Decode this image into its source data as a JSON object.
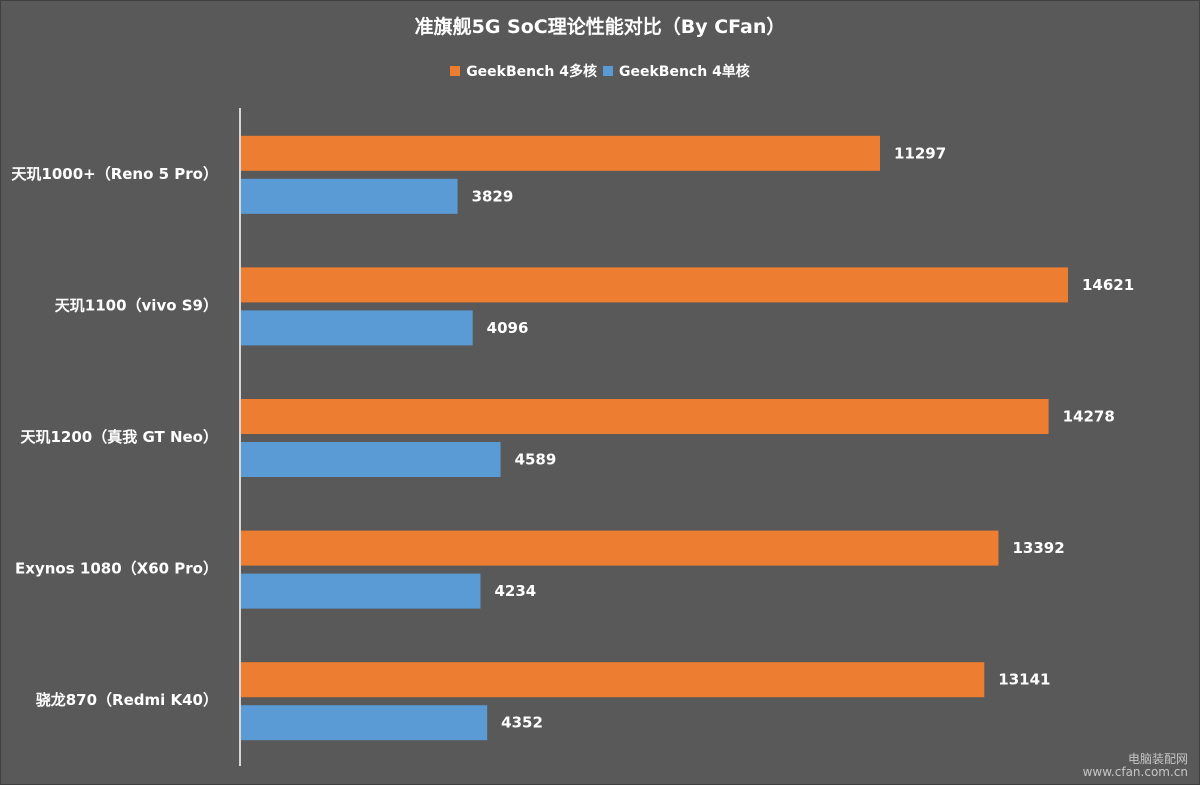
{
  "chart_data": {
    "type": "bar",
    "orientation": "horizontal",
    "title": "准旗舰5G SoC理论性能对比（By CFan）",
    "categories": [
      "天玑1000+（Reno 5 Pro）",
      "天玑1100（vivo S9）",
      "天玑1200（真我 GT Neo）",
      "Exynos 1080（X60 Pro）",
      "骁龙870（Redmi K40）"
    ],
    "series": [
      {
        "name": "GeekBench 4多核",
        "color": "#ed7d31",
        "values": [
          11297,
          14621,
          14278,
          13392,
          13141
        ]
      },
      {
        "name": "GeekBench 4单核",
        "color": "#5b9bd5",
        "values": [
          3829,
          4096,
          4589,
          4234,
          4352
        ]
      }
    ],
    "xlim": [
      0,
      16000
    ],
    "legend_position": "top",
    "grid": false,
    "data_labels": true
  },
  "watermark": {
    "line1": "电脑装配网",
    "line2": "www.cfan.com.cn"
  }
}
